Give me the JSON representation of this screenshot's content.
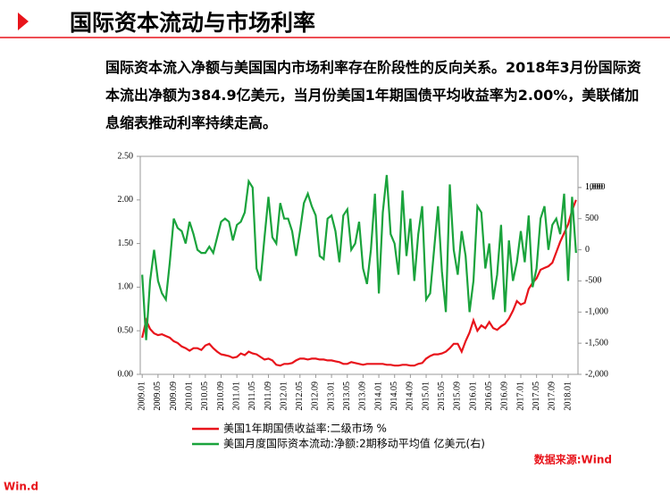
{
  "header": {
    "title": "国际资本流动与市场利率"
  },
  "paragraph": "国际资本流入净额与美国国内市场利率存在阶段性的反向关系。2018年3月份国际资本流出净额为384.9亿美元，当月份美国1年期国债平均收益率为2.00%，美联储加息缩表推动利率持续走高。",
  "source": "数据来源:Wind",
  "logo": "Win.d",
  "chart_data": {
    "type": "line",
    "categories": [
      "2009.01",
      null,
      null,
      null,
      "2009.05",
      null,
      null,
      null,
      "2009.09",
      null,
      null,
      null,
      "2010.01",
      null,
      null,
      null,
      "2010.05",
      null,
      null,
      null,
      "2010.09",
      null,
      null,
      null,
      "2011.01",
      null,
      null,
      null,
      "2011.05",
      null,
      null,
      null,
      "2011.09",
      null,
      null,
      null,
      "2012.01",
      null,
      null,
      null,
      "2012.05",
      null,
      null,
      null,
      "2012.09",
      null,
      null,
      null,
      "2013.01",
      null,
      null,
      null,
      "2013.05",
      null,
      null,
      null,
      "2013.09",
      null,
      null,
      null,
      "2014.01",
      null,
      null,
      null,
      "2014.05",
      null,
      null,
      null,
      "2014.09",
      null,
      null,
      null,
      "2015.01",
      null,
      null,
      null,
      "2015.05",
      null,
      null,
      null,
      "2015.09",
      null,
      null,
      null,
      "2016.01",
      null,
      null,
      null,
      "2016.05",
      null,
      null,
      null,
      "2016.09",
      null,
      null,
      null,
      "2017.01",
      null,
      null,
      null,
      "2017.05",
      null,
      null,
      null,
      "2017.09",
      null,
      null,
      null,
      "2018.01",
      null,
      null
    ],
    "series": [
      {
        "name": "美国1年期国债收益率:二级市场 %",
        "color": "#e8141b",
        "values": [
          0.42,
          0.62,
          0.52,
          0.47,
          0.45,
          0.46,
          0.44,
          0.42,
          0.38,
          0.36,
          0.32,
          0.3,
          0.27,
          0.3,
          0.3,
          0.28,
          0.33,
          0.35,
          0.3,
          0.26,
          0.23,
          0.22,
          0.21,
          0.19,
          0.2,
          0.24,
          0.22,
          0.26,
          0.24,
          0.23,
          0.2,
          0.17,
          0.18,
          0.16,
          0.11,
          0.1,
          0.12,
          0.12,
          0.13,
          0.16,
          0.18,
          0.18,
          0.17,
          0.18,
          0.18,
          0.17,
          0.17,
          0.16,
          0.16,
          0.15,
          0.14,
          0.12,
          0.12,
          0.14,
          0.13,
          0.12,
          0.11,
          0.12,
          0.12,
          0.12,
          0.12,
          0.12,
          0.11,
          0.11,
          0.1,
          0.1,
          0.11,
          0.11,
          0.1,
          0.1,
          0.12,
          0.13,
          0.18,
          0.21,
          0.23,
          0.23,
          0.24,
          0.26,
          0.3,
          0.35,
          0.35,
          0.26,
          0.38,
          0.48,
          0.62,
          0.5,
          0.56,
          0.53,
          0.6,
          0.53,
          0.51,
          0.55,
          0.58,
          0.64,
          0.73,
          0.84,
          0.8,
          0.82,
          0.98,
          1.05,
          1.1,
          1.2,
          1.22,
          1.24,
          1.28,
          1.4,
          1.52,
          1.62,
          1.72,
          1.88,
          2.0
        ]
      },
      {
        "name": "美国月度国际资本流动:净额:2期移动平均值 亿美元(右)",
        "color": "#1aa33c",
        "axis": "y2",
        "values": [
          -400,
          -1450,
          -500,
          0,
          -500,
          -700,
          -800,
          -200,
          500,
          350,
          300,
          100,
          450,
          250,
          0,
          -50,
          -50,
          50,
          -50,
          200,
          450,
          500,
          450,
          150,
          400,
          450,
          600,
          1100,
          1000,
          -300,
          -500,
          200,
          850,
          200,
          100,
          750,
          500,
          500,
          300,
          -100,
          300,
          750,
          900,
          700,
          550,
          -100,
          -150,
          500,
          550,
          300,
          -200,
          550,
          650,
          0,
          100,
          450,
          -300,
          -550,
          0,
          900,
          -700,
          600,
          1200,
          250,
          100,
          -400,
          950,
          -100,
          500,
          -500,
          250,
          700,
          -800,
          -700,
          0,
          700,
          -350,
          -1000,
          1050,
          0,
          -400,
          300,
          -100,
          -1000,
          -500,
          700,
          600,
          -300,
          100,
          -800,
          -400,
          400,
          -1000,
          150,
          -500,
          -200,
          300,
          -200,
          550,
          -600,
          -300,
          500,
          700,
          0,
          400,
          500,
          250,
          900,
          -500,
          850,
          -50
        ]
      }
    ],
    "ylim": [
      0,
      2.5
    ],
    "yticks": [
      {
        "value": 0,
        "label": "0.00"
      },
      {
        "value": 0.5,
        "label": "0.50"
      },
      {
        "value": 1,
        "label": "1.00"
      },
      {
        "value": 1.5,
        "label": "1.50"
      },
      {
        "value": 2,
        "label": "2.00"
      },
      {
        "value": 2.5,
        "label": "2.50"
      }
    ],
    "y2lim": [
      -2000,
      1500
    ],
    "y2ticks": [
      {
        "value": -2000,
        "label": "-2,000"
      },
      {
        "value": -1500,
        "label": "-1,500"
      },
      {
        "value": -1000,
        "label": "-1,000"
      },
      {
        "value": -500,
        "label": "-500"
      },
      0,
      500,
      1000,
      {
        "value": 1000,
        "label": "1,000"
      }
    ]
  }
}
